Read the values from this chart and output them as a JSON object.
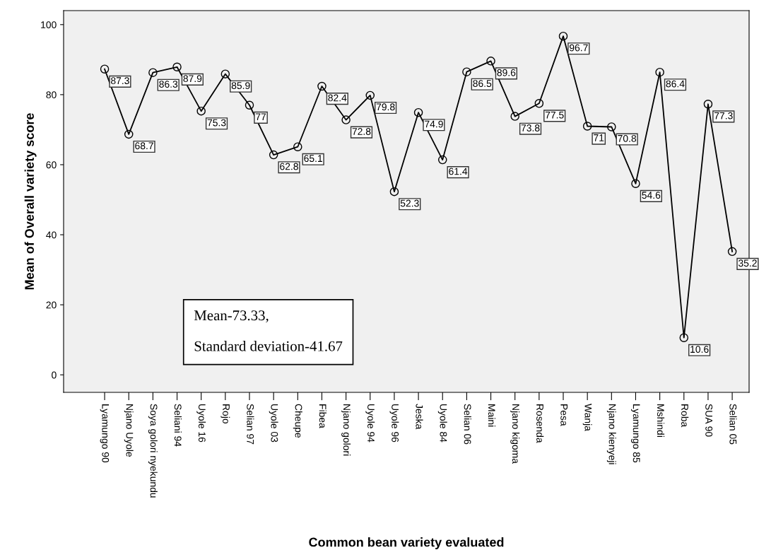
{
  "chart_data": {
    "type": "line",
    "xlabel": "Common bean variety evaluated",
    "ylabel": "Mean of Overall variety score",
    "categories": [
      "Lyamungo 90",
      "Njano Uyole",
      "Soya golori nyekundu",
      "Seliani 94",
      "Uyole 16",
      "Rojo",
      "Selian 97",
      "Uyole 03",
      "Cheupe",
      "Fibea",
      "Njano golori",
      "Uyole 94",
      "Uyole 96",
      "Jeska",
      "Uyole 84",
      "Selian 06",
      "Maini",
      "Njano kigoma",
      "Rosenda",
      "Pesa",
      "Wanja",
      "Njano kienyeji",
      "Lyamungo 85",
      "Mshindi",
      "Roba",
      "SUA 90",
      "Selian 05"
    ],
    "values": [
      87.3,
      68.7,
      86.3,
      87.9,
      75.3,
      85.9,
      77,
      62.8,
      65.1,
      82.4,
      72.8,
      79.8,
      52.3,
      74.9,
      61.4,
      86.5,
      89.6,
      73.8,
      77.5,
      96.7,
      71,
      70.8,
      54.6,
      86.4,
      10.6,
      77.3,
      35.2
    ],
    "color": "#000000",
    "ylim": [
      -5,
      104
    ],
    "yticks": [
      0,
      20,
      40,
      60,
      80,
      100
    ],
    "marker": "circle",
    "line_style": "solid",
    "grid": false,
    "data_labels": true,
    "annotations": [
      "Mean-73.33,",
      "Standard deviation-41.67"
    ]
  }
}
